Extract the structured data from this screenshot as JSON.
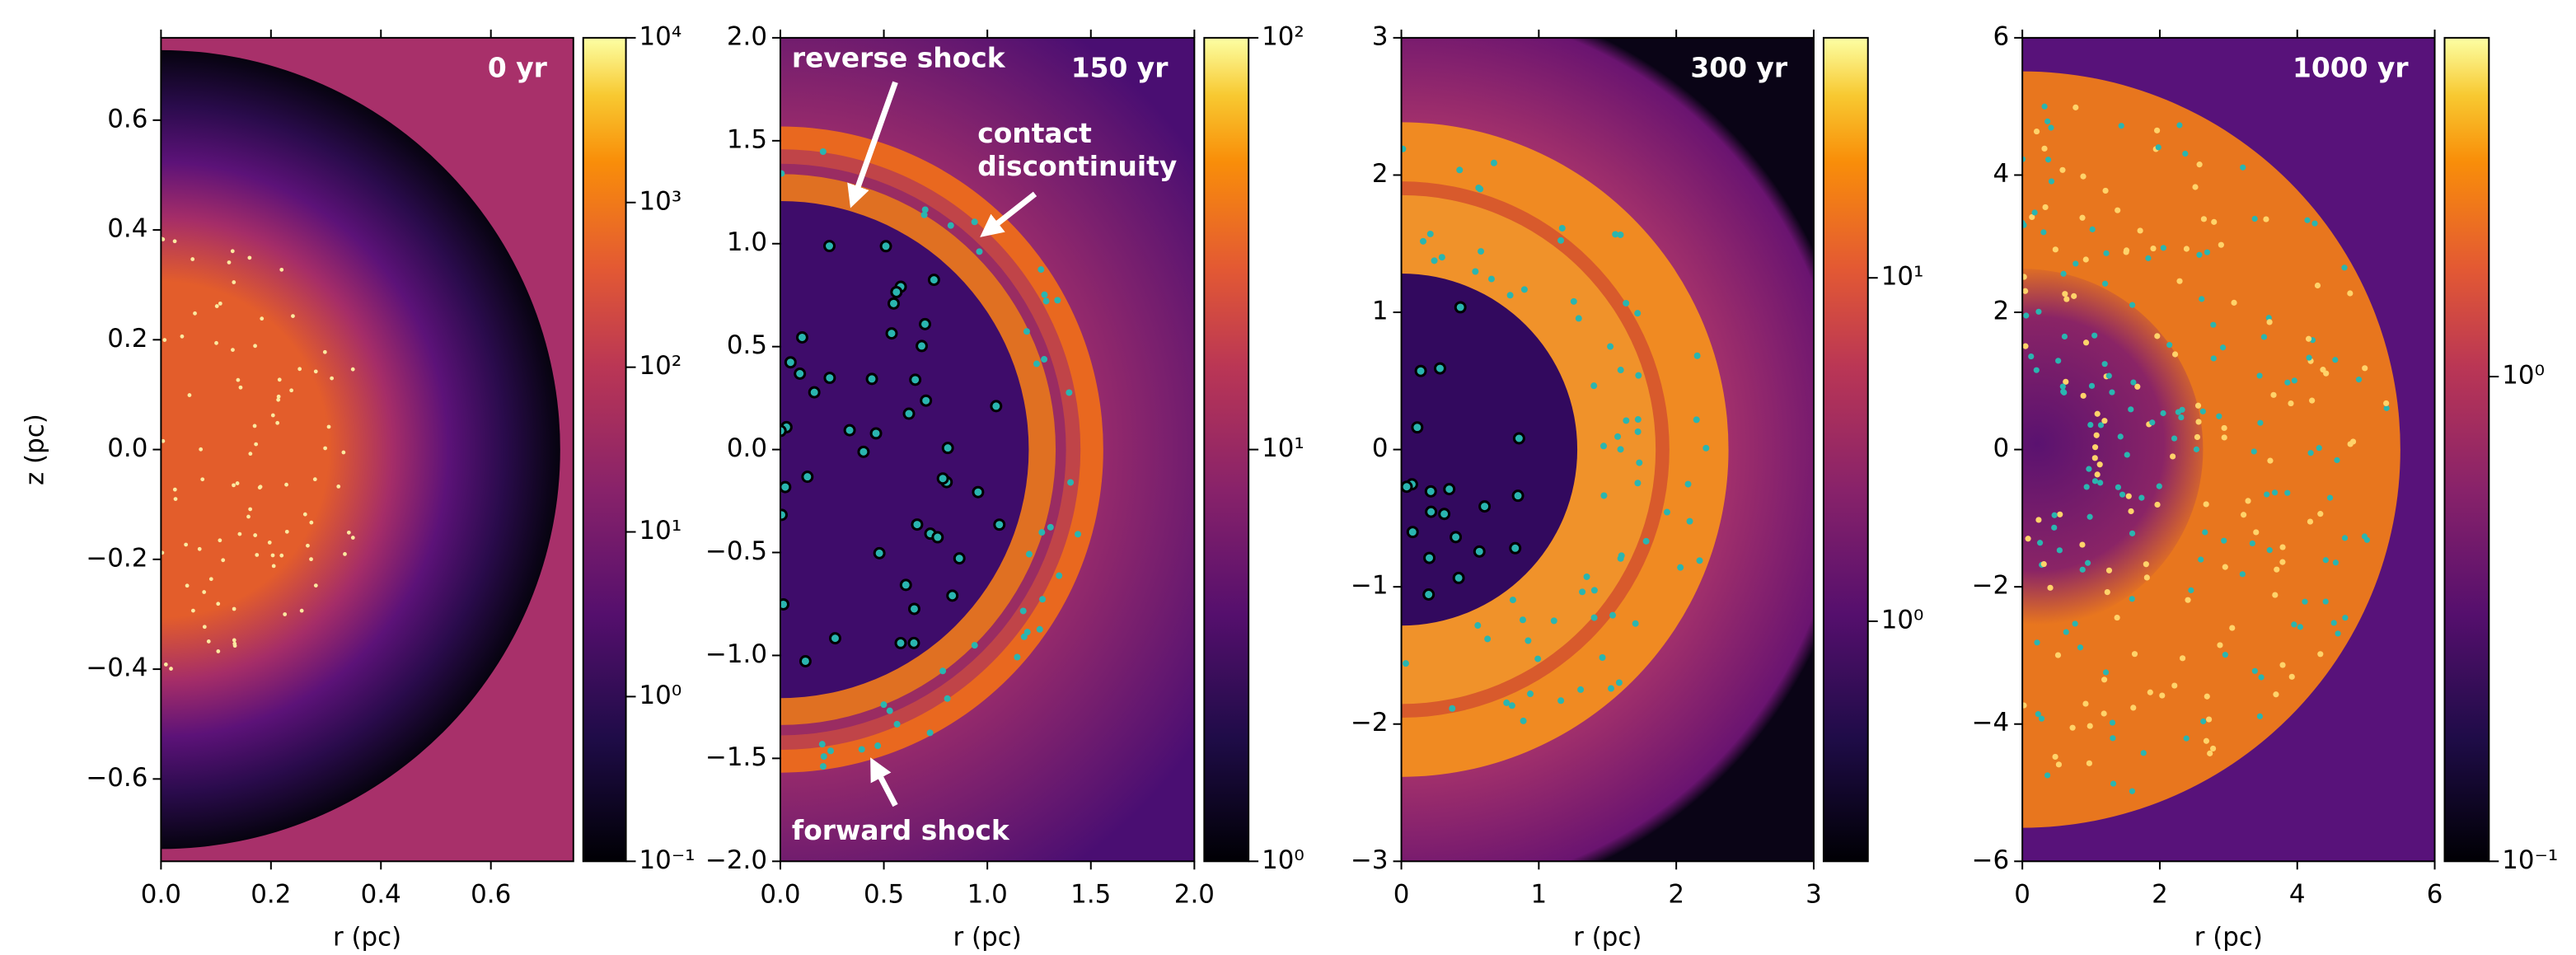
{
  "chart_data": [
    {
      "type": "heatmap",
      "title": "0 yr",
      "xlabel": "r (pc)",
      "ylabel": "z (pc)",
      "xlim": [
        0,
        0.75
      ],
      "ylim": [
        -0.75,
        0.75
      ],
      "xticks": [
        {
          "value": 0,
          "label": "0.0"
        },
        {
          "value": 0.2,
          "label": "0.2"
        },
        {
          "value": 0.4,
          "label": "0.4"
        },
        {
          "value": 0.6,
          "label": "0.6"
        }
      ],
      "yticks": [
        {
          "value": -0.6,
          "label": "−0.6"
        },
        {
          "value": -0.4,
          "label": "−0.4"
        },
        {
          "value": -0.2,
          "label": "−0.2"
        },
        {
          "value": 0,
          "label": "0.0"
        },
        {
          "value": 0.2,
          "label": "0.2"
        },
        {
          "value": 0.4,
          "label": "0.4"
        },
        {
          "value": 0.6,
          "label": "0.6"
        }
      ],
      "colorbar": {
        "scale": "log",
        "clim": [
          0.1,
          10000
        ],
        "ticks": [
          {
            "value": 0.1,
            "label": "10⁻¹"
          },
          {
            "value": 1,
            "label": "10⁰"
          },
          {
            "value": 10,
            "label": "10¹"
          },
          {
            "value": 100,
            "label": "10²"
          },
          {
            "value": 1000,
            "label": "10³"
          },
          {
            "value": 10000,
            "label": "10⁴"
          }
        ]
      }
    },
    {
      "type": "heatmap",
      "title": "150 yr",
      "xlabel": "r (pc)",
      "xlim": [
        0,
        2
      ],
      "ylim": [
        -2,
        2
      ],
      "xticks": [
        {
          "value": 0,
          "label": "0.0"
        },
        {
          "value": 0.5,
          "label": "0.5"
        },
        {
          "value": 1,
          "label": "1.0"
        },
        {
          "value": 1.5,
          "label": "1.5"
        },
        {
          "value": 2,
          "label": "2.0"
        }
      ],
      "yticks": [
        {
          "value": -2,
          "label": "−2.0"
        },
        {
          "value": -1.5,
          "label": "−1.5"
        },
        {
          "value": -1,
          "label": "−1.0"
        },
        {
          "value": -0.5,
          "label": "−0.5"
        },
        {
          "value": 0,
          "label": "0.0"
        },
        {
          "value": 0.5,
          "label": "0.5"
        },
        {
          "value": 1,
          "label": "1.0"
        },
        {
          "value": 1.5,
          "label": "1.5"
        },
        {
          "value": 2,
          "label": "2.0"
        }
      ],
      "colorbar": {
        "scale": "log",
        "clim": [
          1,
          100
        ],
        "ticks": [
          {
            "value": 1,
            "label": "10⁰"
          },
          {
            "value": 10,
            "label": "10¹"
          },
          {
            "value": 100,
            "label": "10²"
          }
        ]
      },
      "annotations": [
        "reverse shock",
        "contact",
        "discontinuity",
        "forward shock"
      ]
    },
    {
      "type": "heatmap",
      "title": "300 yr",
      "xlabel": "r (pc)",
      "xlim": [
        0,
        3
      ],
      "ylim": [
        -3,
        3
      ],
      "xticks": [
        0,
        1,
        2,
        3
      ],
      "yticks": [
        {
          "value": -3,
          "label": "−3"
        },
        {
          "value": -2,
          "label": "−2"
        },
        {
          "value": -1,
          "label": "−1"
        },
        0,
        1,
        2,
        3
      ],
      "colorbar": {
        "scale": "log",
        "clim": [
          0.2,
          50
        ],
        "ticks": [
          {
            "value": 1,
            "label": "10⁰"
          },
          {
            "value": 10,
            "label": "10¹"
          }
        ]
      }
    },
    {
      "type": "heatmap",
      "title": "1000 yr",
      "xlabel": "r (pc)",
      "xlim": [
        0,
        6
      ],
      "ylim": [
        -6,
        6
      ],
      "xticks": [
        0,
        2,
        4,
        6
      ],
      "yticks": [
        {
          "value": -6,
          "label": "−6"
        },
        {
          "value": -4,
          "label": "−4"
        },
        {
          "value": -2,
          "label": "−2"
        },
        0,
        2,
        4,
        6
      ],
      "colorbar": {
        "scale": "log",
        "clim": [
          0.1,
          5
        ],
        "ticks": [
          {
            "value": 0.1,
            "label": "10⁻¹"
          },
          {
            "value": 1,
            "label": "10⁰"
          }
        ]
      }
    }
  ]
}
